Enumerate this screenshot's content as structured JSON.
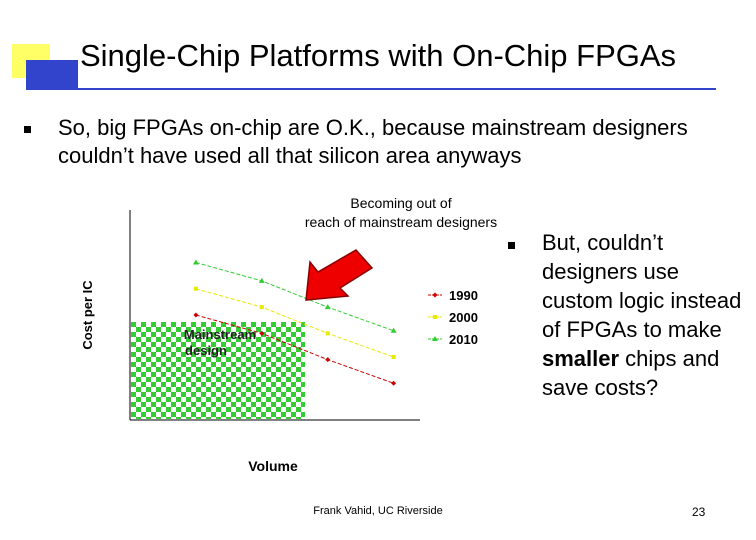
{
  "slide": {
    "title": "Single-Chip Platforms with On-Chip FPGAs",
    "bullet1": "So, big FPGAs on-chip are O.K., because mainstream designers couldn’t have used all that silicon area anyways",
    "bullet2_part1": "But, couldn’t designers use custom logic instead of FPGAs to make ",
    "bullet2_bold": "smaller",
    "bullet2_part2": " chips and save costs?",
    "footer": "Frank Vahid, UC Riverside",
    "page_number": "23"
  },
  "colors": {
    "accent_blue": "#3344cc",
    "accent_yellow": "#ffff66",
    "series_1990": "#cc0000",
    "series_2000": "#e8e800",
    "series_2010": "#33cc33",
    "checker_green": "#33cc33",
    "arrow_red": "#ee0000"
  },
  "chart_data": {
    "type": "line",
    "xlabel": "Volume",
    "ylabel": "Cost per IC",
    "x": [
      1,
      2,
      3,
      4
    ],
    "series": [
      {
        "name": "1990",
        "marker": "diamond",
        "values": [
          4.0,
          3.3,
          2.3,
          1.4
        ]
      },
      {
        "name": "2000",
        "marker": "square",
        "values": [
          5.0,
          4.3,
          3.3,
          2.4
        ]
      },
      {
        "name": "2010",
        "marker": "triangle",
        "values": [
          6.0,
          5.3,
          4.3,
          3.4
        ]
      }
    ],
    "ylim": [
      0,
      8
    ],
    "xlim": [
      0,
      4.4
    ],
    "legend_position": "right",
    "annotations": {
      "region_label": "Mainstream design",
      "arrow_label": "Becoming out of reach of mainstream designers"
    }
  }
}
